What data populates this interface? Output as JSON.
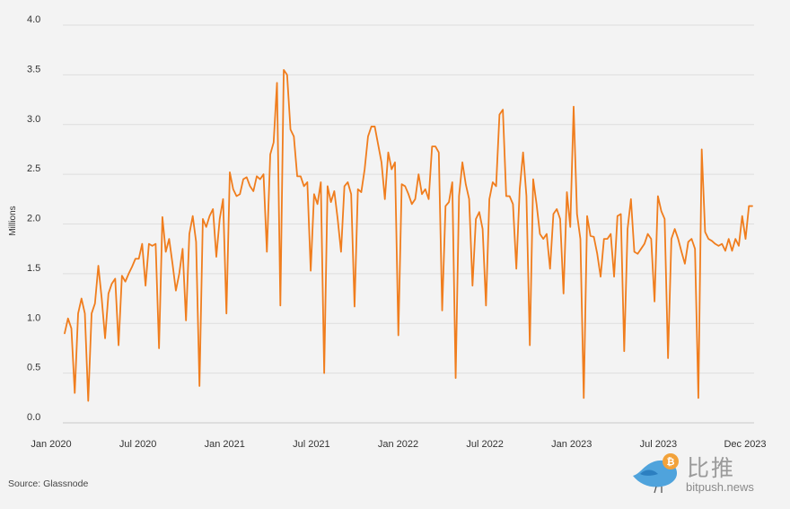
{
  "chart_data": {
    "type": "line",
    "ylabel": "Millions",
    "xlabel": "",
    "ylim": [
      0,
      4.0
    ],
    "y_ticks": [
      0.0,
      0.5,
      1.0,
      1.5,
      2.0,
      2.5,
      3.0,
      3.5,
      4.0
    ],
    "y_tick_labels": [
      "0.0",
      "0.5",
      "1.0",
      "1.5",
      "2.0",
      "2.5",
      "3.0",
      "3.5",
      "4.0"
    ],
    "x_tick_labels": [
      "Jan 2020",
      "Jul 2020",
      "Jan 2021",
      "Jul 2021",
      "Jan 2022",
      "Jul 2022",
      "Jan 2023",
      "Jul 2023",
      "Dec 2023"
    ],
    "grid": true,
    "line_color": "#f07d1d",
    "series": [
      {
        "values": [
          0.9,
          1.05,
          0.95,
          0.3,
          1.1,
          1.25,
          1.1,
          0.22,
          1.1,
          1.2,
          1.58,
          1.25,
          0.85,
          1.3,
          1.4,
          1.45,
          0.78,
          1.48,
          1.42,
          1.5,
          1.57,
          1.65,
          1.65,
          1.8,
          1.38,
          1.8,
          1.78,
          1.8,
          0.75,
          2.07,
          1.72,
          1.85,
          1.6,
          1.33,
          1.5,
          1.75,
          1.03,
          1.9,
          2.08,
          1.82,
          0.37,
          2.05,
          1.97,
          2.08,
          2.15,
          1.67,
          2.05,
          2.25,
          1.1,
          2.52,
          2.35,
          2.28,
          2.3,
          2.45,
          2.47,
          2.38,
          2.33,
          2.48,
          2.45,
          2.5,
          1.72,
          2.7,
          2.82,
          3.42,
          1.18,
          3.55,
          3.5,
          2.95,
          2.88,
          2.48,
          2.48,
          2.38,
          2.42,
          1.53,
          2.3,
          2.2,
          2.42,
          0.5,
          2.38,
          2.22,
          2.33,
          2.05,
          1.72,
          2.38,
          2.42,
          2.3,
          1.17,
          2.35,
          2.32,
          2.55,
          2.88,
          2.98,
          2.98,
          2.8,
          2.62,
          2.25,
          2.72,
          2.55,
          2.62,
          0.88,
          2.4,
          2.38,
          2.3,
          2.2,
          2.25,
          2.5,
          2.3,
          2.35,
          2.25,
          2.78,
          2.78,
          2.72,
          1.13,
          2.18,
          2.22,
          2.42,
          0.45,
          2.28,
          2.62,
          2.4,
          2.25,
          1.38,
          2.05,
          2.12,
          1.95,
          1.18,
          2.25,
          2.42,
          2.38,
          3.1,
          3.15,
          2.28,
          2.28,
          2.2,
          1.55,
          2.35,
          2.72,
          2.28,
          0.78,
          2.45,
          2.2,
          1.9,
          1.85,
          1.9,
          1.55,
          2.1,
          2.15,
          2.05,
          1.3,
          2.32,
          1.97,
          3.18,
          2.1,
          1.85,
          0.25,
          2.08,
          1.88,
          1.87,
          1.7,
          1.47,
          1.85,
          1.85,
          1.9,
          1.47,
          2.08,
          2.1,
          0.72,
          1.95,
          2.25,
          1.72,
          1.7,
          1.75,
          1.8,
          1.9,
          1.85,
          1.22,
          2.28,
          2.13,
          2.05,
          0.65,
          1.85,
          1.95,
          1.85,
          1.72,
          1.6,
          1.82,
          1.85,
          1.75,
          0.25,
          2.75,
          1.92,
          1.85,
          1.83,
          1.8,
          1.78,
          1.8,
          1.73,
          1.85,
          1.73,
          1.85,
          1.78,
          2.08,
          1.85,
          2.18,
          2.18
        ]
      }
    ]
  },
  "source": "Source: Glassnode",
  "watermark": {
    "brand": "比推",
    "url": "bitpush.news"
  }
}
